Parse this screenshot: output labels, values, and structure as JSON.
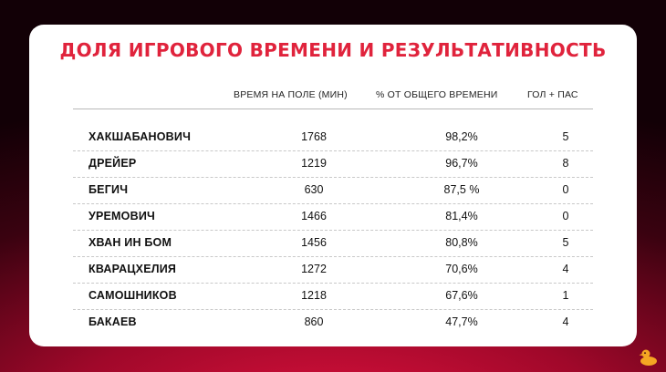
{
  "title": "ДОЛЯ ИГРОВОГО ВРЕМЕНИ И РЕЗУЛЬТАТИВНОСТЬ",
  "columns": {
    "time": "ВРЕМЯ НА ПОЛЕ (МИН)",
    "pct": "% ОТ ОБЩЕГО ВРЕМЕНИ",
    "gp": "ГОЛ + ПАС"
  },
  "players": [
    {
      "name": "ХАКШАБАНОВИЧ",
      "time": "1768",
      "pct": "98,2%",
      "gp": "5"
    },
    {
      "name": "ДРЕЙЕР",
      "time": "1219",
      "pct": "96,7%",
      "gp": "8"
    },
    {
      "name": "БЕГИЧ",
      "time": "630",
      "pct": "87,5 %",
      "gp": "0"
    },
    {
      "name": "УРЕМОВИЧ",
      "time": "1466",
      "pct": "81,4%",
      "gp": "0"
    },
    {
      "name": "ХВАН ИН БОМ",
      "time": "1456",
      "pct": "80,8%",
      "gp": "5"
    },
    {
      "name": "КВАРАЦХЕЛИЯ",
      "time": "1272",
      "pct": "70,6%",
      "gp": "4"
    },
    {
      "name": "САМОШНИКОВ",
      "time": "1218",
      "pct": "67,6%",
      "gp": "1"
    },
    {
      "name": "БАКАЕВ",
      "time": "860",
      "pct": "47,7%",
      "gp": "4"
    }
  ],
  "colors": {
    "title": "#e0233c",
    "background": "#a0082a",
    "logo": "#f5a623"
  },
  "logo_icon": "duck-icon"
}
